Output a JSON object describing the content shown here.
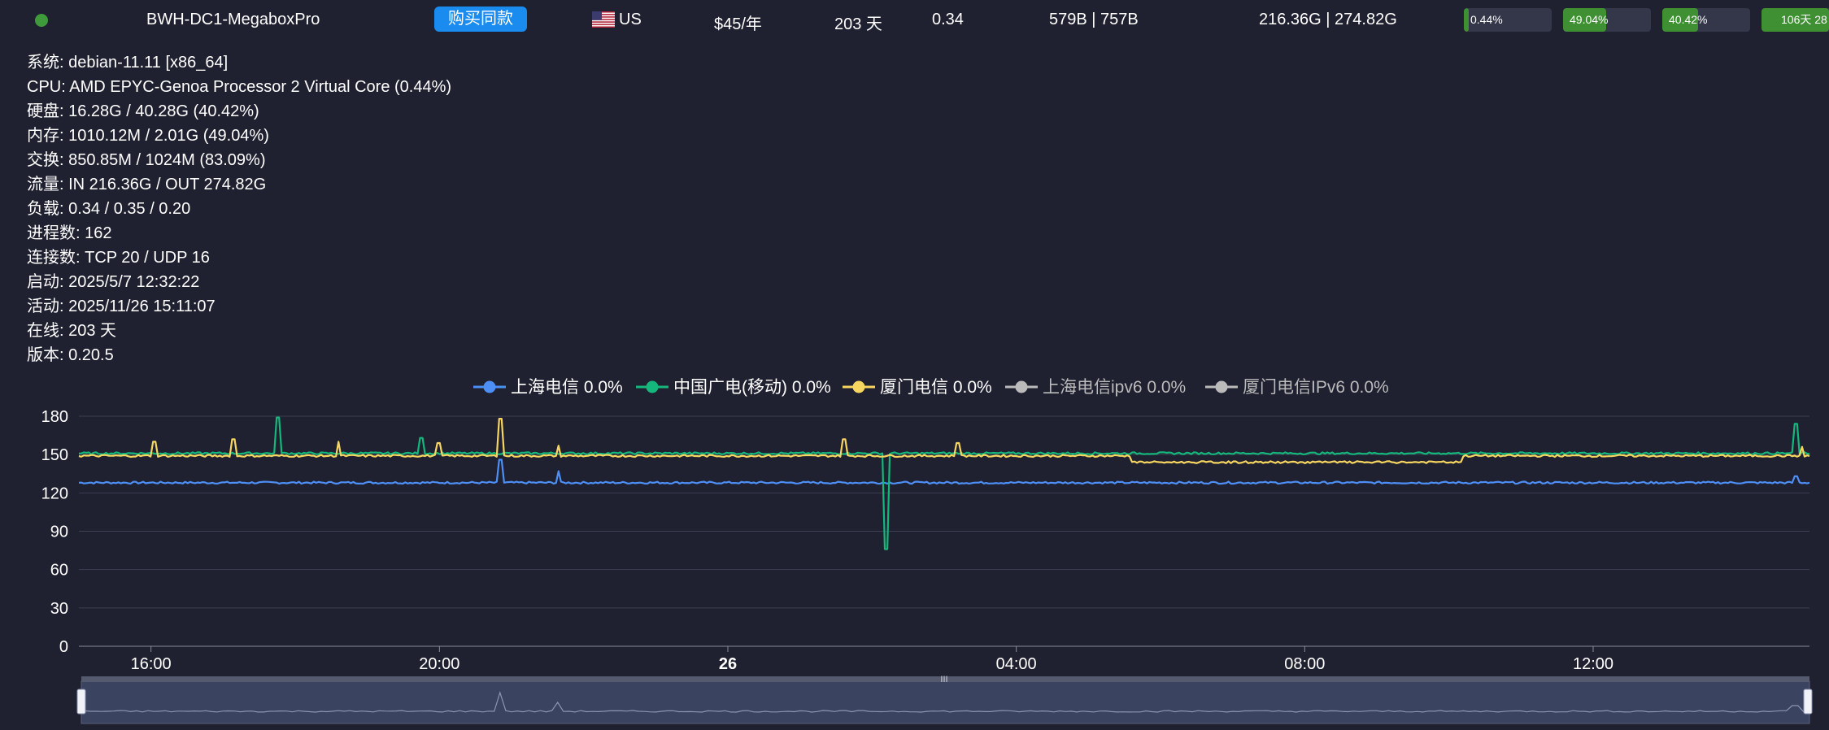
{
  "server": {
    "name": "BWH-DC1-MegaboxPro",
    "buy_label": "购买同款",
    "country": "US",
    "price": "$45/年",
    "uptime": "203 天",
    "load": "0.34",
    "network": "579B | 757B",
    "traffic": "216.36G | 274.82G",
    "status_color": "#3f9a3c",
    "bars": [
      {
        "label": "0.44%",
        "value": 0.44
      },
      {
        "label": "49.04%",
        "value": 49.04
      },
      {
        "label": "40.42%",
        "value": 40.42
      },
      {
        "label": "106天 28",
        "value": 100
      }
    ]
  },
  "info": {
    "system": "系统: debian-11.11 [x86_64]",
    "cpu": "CPU: AMD EPYC-Genoa Processor 2 Virtual Core (0.44%)",
    "disk": "硬盘: 16.28G / 40.28G (40.42%)",
    "memory": "内存: 1010.12M / 2.01G (49.04%)",
    "swap": "交换: 850.85M / 1024M (83.09%)",
    "traffic": "流量: IN 216.36G / OUT 274.82G",
    "load": "负载: 0.34 / 0.35 / 0.20",
    "processes": "进程数: 162",
    "connections": "连接数: TCP 20 / UDP 16",
    "boot": "启动: 2025/5/7 12:32:22",
    "active": "活动: 2025/11/26 15:11:07",
    "online": "在线: 203 天",
    "version": "版本: 0.20.5"
  },
  "legend": [
    {
      "label": "上海电信 0.0%",
      "color": "#4d8ff5",
      "active": true
    },
    {
      "label": "中国广电(移动) 0.0%",
      "color": "#14b87c",
      "active": true
    },
    {
      "label": "厦门电信 0.0%",
      "color": "#f7d660",
      "active": true
    },
    {
      "label": "上海电信ipv6 0.0%",
      "color": "#bbbbbb",
      "active": false
    },
    {
      "label": "厦门电信IPv6 0.0%",
      "color": "#bbbbbb",
      "active": false
    }
  ],
  "chart_data": {
    "type": "line",
    "x_range": [
      "15:00",
      "15:00"
    ],
    "y_ticks": [
      0,
      30,
      60,
      90,
      120,
      150,
      180
    ],
    "ylim": [
      0,
      180
    ],
    "x_ticks": [
      "16:00",
      "20:00",
      "26",
      "04:00",
      "08:00",
      "12:00"
    ],
    "series": [
      {
        "name": "上海电信",
        "color": "#4d8ff5",
        "baseline": 128,
        "spikes": [
          [
            5.85,
            146
          ],
          [
            6.65,
            137
          ],
          [
            23.8,
            133
          ]
        ]
      },
      {
        "name": "中国广电(移动)",
        "color": "#14b87c",
        "baseline": 151,
        "spikes": [
          [
            2.75,
            179
          ],
          [
            4.75,
            163
          ],
          [
            11.2,
            76
          ],
          [
            23.8,
            174
          ]
        ]
      },
      {
        "name": "厦门电信",
        "color": "#f7d660",
        "baseline": 149,
        "dip": [
          14.6,
          19.2,
          144
        ],
        "spikes": [
          [
            1.05,
            160
          ],
          [
            2.15,
            162
          ],
          [
            3.6,
            160
          ],
          [
            4.98,
            159
          ],
          [
            5.85,
            178
          ],
          [
            6.65,
            157
          ],
          [
            10.6,
            162
          ],
          [
            12.2,
            159
          ],
          [
            23.9,
            156
          ]
        ]
      }
    ],
    "grid": true,
    "legend_position": "top-center"
  }
}
